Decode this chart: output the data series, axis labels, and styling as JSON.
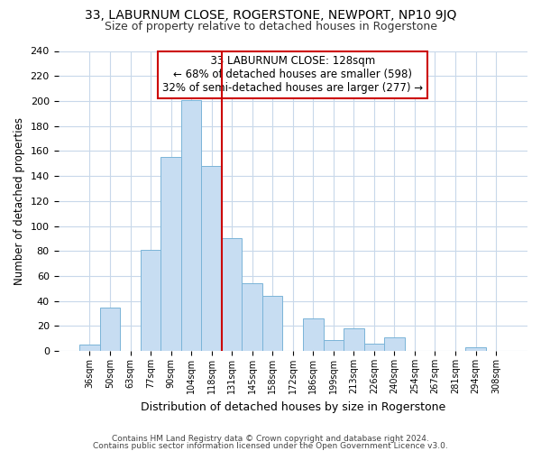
{
  "title1": "33, LABURNUM CLOSE, ROGERSTONE, NEWPORT, NP10 9JQ",
  "title2": "Size of property relative to detached houses in Rogerstone",
  "xlabel": "Distribution of detached houses by size in Rogerstone",
  "ylabel": "Number of detached properties",
  "bin_labels": [
    "36sqm",
    "50sqm",
    "63sqm",
    "77sqm",
    "90sqm",
    "104sqm",
    "118sqm",
    "131sqm",
    "145sqm",
    "158sqm",
    "172sqm",
    "186sqm",
    "199sqm",
    "213sqm",
    "226sqm",
    "240sqm",
    "254sqm",
    "267sqm",
    "281sqm",
    "294sqm",
    "308sqm"
  ],
  "bar_heights": [
    5,
    35,
    0,
    81,
    155,
    201,
    148,
    90,
    54,
    44,
    0,
    26,
    9,
    18,
    6,
    11,
    0,
    0,
    0,
    3,
    0
  ],
  "bar_color": "#c7ddf2",
  "bar_edge_color": "#7ab4d8",
  "vline_color": "#cc0000",
  "annotation_title": "33 LABURNUM CLOSE: 128sqm",
  "annotation_line1": "← 68% of detached houses are smaller (598)",
  "annotation_line2": "32% of semi-detached houses are larger (277) →",
  "annotation_box_color": "#ffffff",
  "annotation_box_edge": "#cc0000",
  "ylim": [
    0,
    240
  ],
  "yticks": [
    0,
    20,
    40,
    60,
    80,
    100,
    120,
    140,
    160,
    180,
    200,
    220,
    240
  ],
  "footer1": "Contains HM Land Registry data © Crown copyright and database right 2024.",
  "footer2": "Contains public sector information licensed under the Open Government Licence v3.0.",
  "bg_color": "#ffffff",
  "grid_color": "#c8d8ea"
}
